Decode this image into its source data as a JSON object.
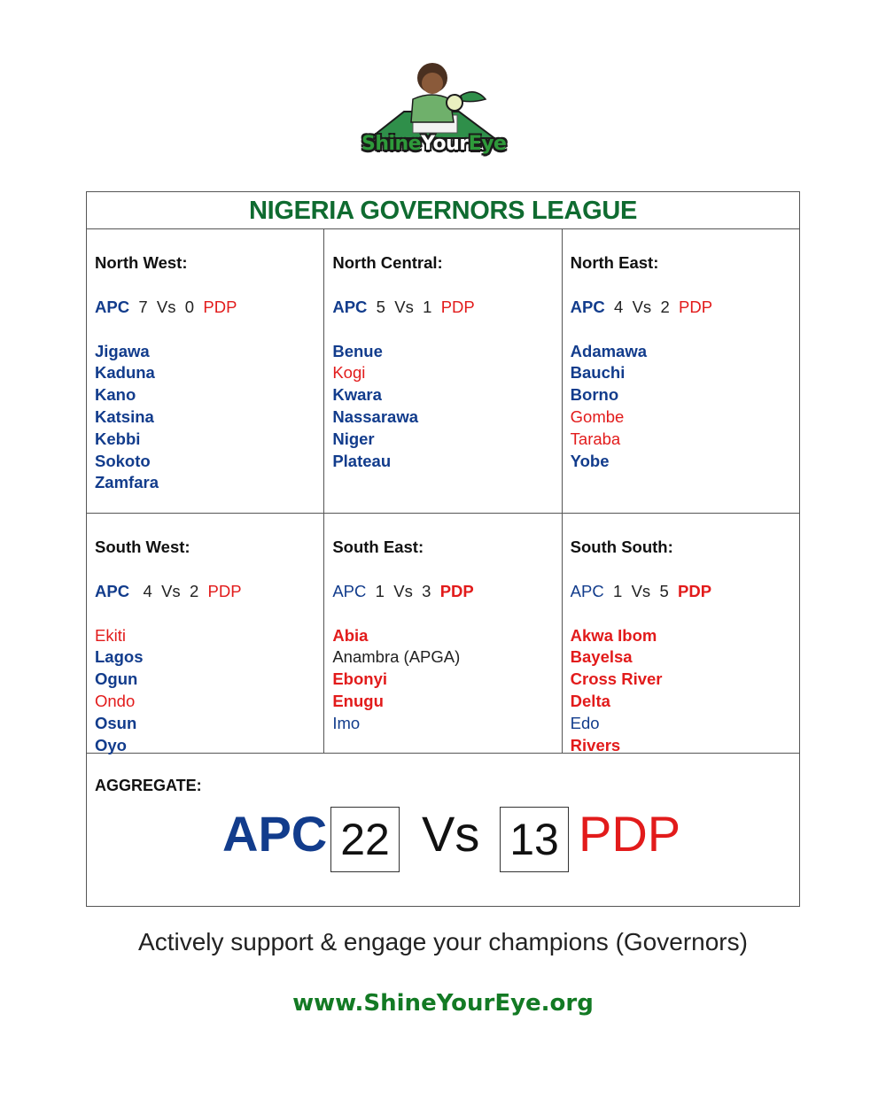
{
  "logo": {
    "part1": "Shine",
    "part2": "Your",
    "part3": "Eye"
  },
  "title": "NIGERIA GOVERNORS LEAGUE",
  "regions": [
    {
      "name": "North West:",
      "apc_label": "APC",
      "apc_score": "7",
      "vs": "Vs",
      "pdp_score": "0",
      "pdp_label": "PDP",
      "states": [
        "Jigawa",
        "Kaduna",
        "Kano",
        "Katsina",
        "Kebbi",
        "Sokoto",
        "Zamfara"
      ]
    },
    {
      "name": "North Central:",
      "apc_label": "APC",
      "apc_score": "5",
      "vs": "Vs",
      "pdp_score": "1",
      "pdp_label": "PDP",
      "states": [
        "Benue",
        "Kogi",
        "Kwara",
        "Nassarawa",
        "Niger",
        "Plateau"
      ]
    },
    {
      "name": "North East:",
      "apc_label": "APC",
      "apc_score": "4",
      "vs": "Vs",
      "pdp_score": "2",
      "pdp_label": "PDP",
      "states": [
        "Adamawa",
        "Bauchi",
        "Borno",
        "Gombe",
        "Taraba",
        "Yobe"
      ]
    },
    {
      "name": "South West:",
      "apc_label": "APC",
      "apc_score": "4",
      "vs": "Vs",
      "pdp_score": "2",
      "pdp_label": "PDP",
      "states": [
        "Ekiti",
        "Lagos",
        "Ogun",
        "Ondo",
        "Osun",
        "Oyo"
      ]
    },
    {
      "name": "South East:",
      "apc_label": "APC",
      "apc_score": "1",
      "vs": "Vs",
      "pdp_score": "3",
      "pdp_label": "PDP",
      "states": [
        "Abia",
        "Anambra (APGA)",
        "Ebonyi",
        "Enugu",
        "Imo"
      ]
    },
    {
      "name": "South South:",
      "apc_label": "APC",
      "apc_score": "1",
      "vs": "Vs",
      "pdp_score": "5",
      "pdp_label": "PDP",
      "states": [
        "Akwa Ibom",
        "Bayelsa",
        "Cross River",
        "Delta",
        "Edo",
        "Rivers"
      ]
    }
  ],
  "aggregate": {
    "label": "AGGREGATE:",
    "apc_label": "APC",
    "apc_total": "22",
    "vs": "Vs",
    "pdp_total": "13",
    "pdp_label": "PDP"
  },
  "slogan": "Actively support & engage your champions (Governors)",
  "website": "www.ShineYourEye.org",
  "colors": {
    "apc": "#123c8c",
    "pdp": "#e21b1b",
    "title_green": "#0f6b30",
    "site_green": "#137a24"
  }
}
